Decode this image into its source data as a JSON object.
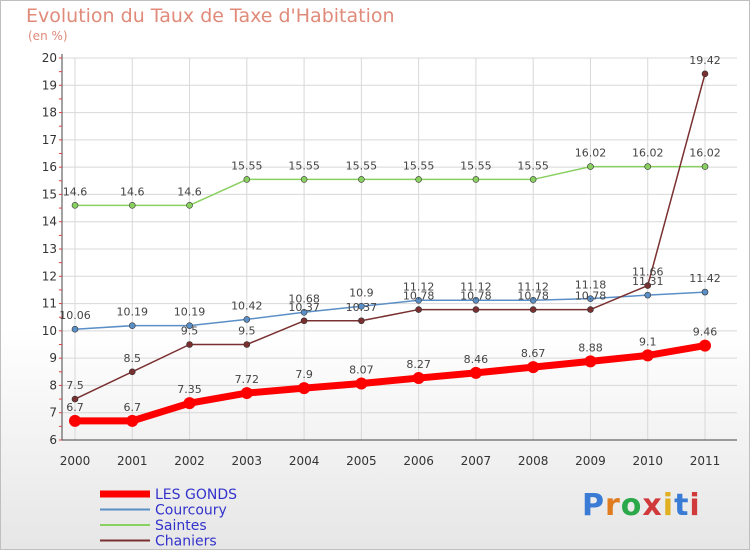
{
  "title": "Evolution du Taux de Taxe d'Habitation",
  "subtitle": "(en %)",
  "logo": "Proxiti",
  "chart_data": {
    "type": "line",
    "x": [
      2000,
      2001,
      2002,
      2003,
      2004,
      2005,
      2006,
      2007,
      2008,
      2009,
      2010,
      2011
    ],
    "ylim": [
      6,
      20
    ],
    "yticks": [
      6,
      7,
      8,
      9,
      10,
      11,
      12,
      13,
      14,
      15,
      16,
      17,
      18,
      19,
      20
    ],
    "grid": true,
    "legend": "bottom-left",
    "series": [
      {
        "name": "LES GONDS",
        "color": "#ff0000",
        "width": 7,
        "marker": 6,
        "values": [
          6.7,
          6.7,
          7.35,
          7.72,
          7.9,
          8.07,
          8.27,
          8.46,
          8.67,
          8.88,
          9.1,
          9.46
        ],
        "labels": [
          "6.7",
          "6.7",
          "7.35",
          "7.72",
          "7.9",
          "8.07",
          "8.27",
          "8.46",
          "8.67",
          "8.88",
          "9.1",
          "9.46"
        ]
      },
      {
        "name": "Courcoury",
        "color": "#5b8fc7",
        "width": 1.5,
        "marker": 3,
        "values": [
          10.06,
          10.19,
          10.19,
          10.42,
          10.68,
          10.9,
          11.12,
          11.12,
          11.12,
          11.18,
          11.31,
          11.42
        ],
        "labels": [
          "10.06",
          "10.19",
          "10.19",
          "10.42",
          "10.68",
          "10.9",
          "11.12",
          "11.12",
          "11.12",
          "11.18",
          "11.31",
          "11.42"
        ]
      },
      {
        "name": "Saintes",
        "color": "#8ad060",
        "width": 1.5,
        "marker": 3,
        "values": [
          14.6,
          14.6,
          14.6,
          15.55,
          15.55,
          15.55,
          15.55,
          15.55,
          15.55,
          16.02,
          16.02,
          16.02
        ],
        "labels": [
          "14.6",
          "14.6",
          "14.6",
          "15.55",
          "15.55",
          "15.55",
          "15.55",
          "15.55",
          "15.55",
          "16.02",
          "16.02",
          "16.02"
        ]
      },
      {
        "name": "Chaniers",
        "color": "#7a3030",
        "width": 1.5,
        "marker": 3,
        "values": [
          7.5,
          8.5,
          9.5,
          9.5,
          10.37,
          10.37,
          10.78,
          10.78,
          10.78,
          10.78,
          11.66,
          19.42
        ],
        "labels": [
          "7.5",
          "8.5",
          "9.5",
          "9.5",
          "10.37",
          "10.37",
          "10.78",
          "10.78",
          "10.78",
          "10.78",
          "11.66",
          "19.42"
        ]
      }
    ]
  }
}
